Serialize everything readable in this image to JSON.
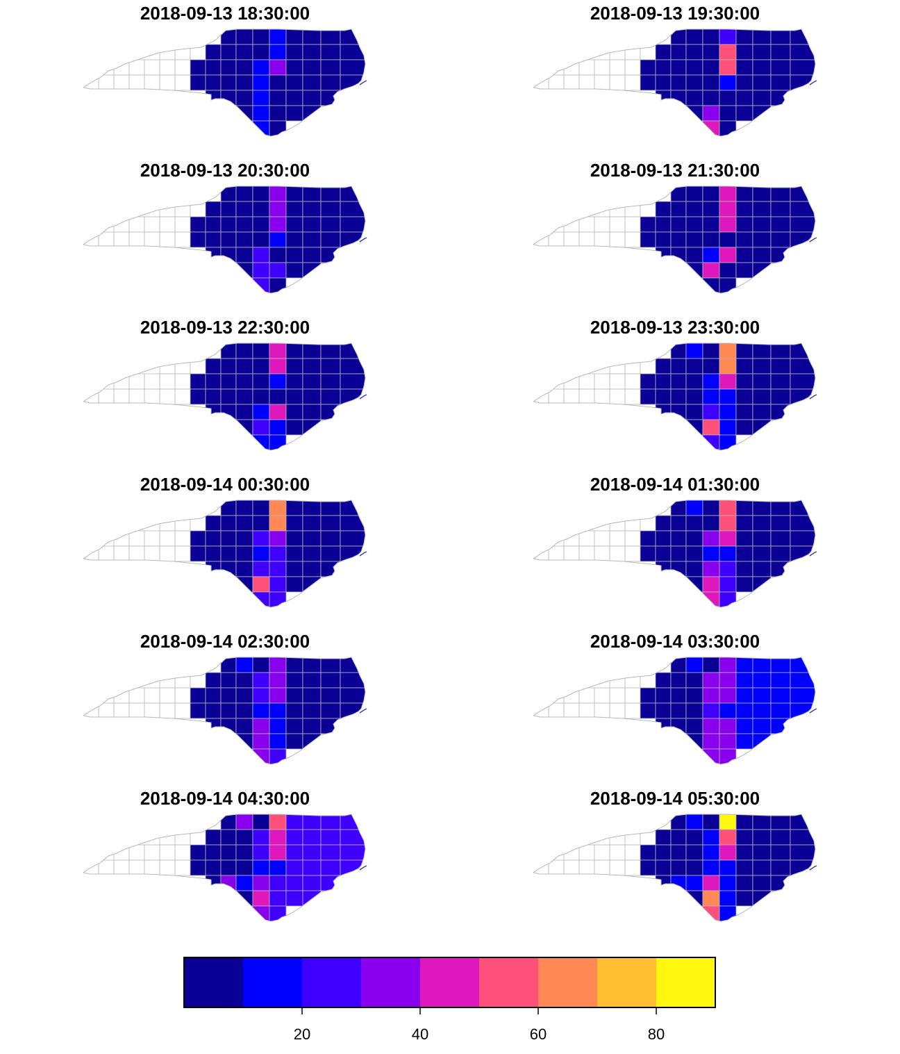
{
  "panels": [
    {
      "title": "2018-09-13 18:30:00",
      "values": [
        0,
        0,
        0,
        0,
        0,
        0,
        0,
        0,
        0,
        0,
        0,
        0,
        0,
        0,
        0,
        5,
        5,
        5,
        5,
        5,
        5,
        5,
        5,
        5,
        5,
        5,
        5,
        5,
        5,
        5,
        5,
        5,
        5,
        5,
        15,
        15,
        15,
        15,
        15,
        15,
        15,
        35,
        5,
        5,
        5,
        5,
        5
      ]
    },
    {
      "title": "2018-09-13 19:30:00",
      "values": [
        0,
        0,
        0,
        0,
        0,
        0,
        0,
        0,
        0,
        0,
        0,
        0,
        0,
        0,
        0,
        5,
        5,
        5,
        5,
        5,
        5,
        5,
        5,
        5,
        5,
        5,
        5,
        5,
        5,
        5,
        5,
        5,
        5,
        5,
        5,
        5,
        5,
        35,
        45,
        25,
        55,
        55,
        15,
        5,
        5,
        5,
        5
      ]
    },
    {
      "title": "2018-09-13 20:30:00",
      "values": [
        0,
        0,
        0,
        0,
        0,
        0,
        0,
        0,
        0,
        0,
        0,
        0,
        0,
        0,
        0,
        5,
        5,
        5,
        5,
        5,
        5,
        5,
        5,
        5,
        5,
        5,
        5,
        5,
        5,
        5,
        5,
        5,
        5,
        5,
        5,
        5,
        25,
        25,
        25,
        35,
        35,
        35,
        15,
        5,
        25,
        5,
        5
      ]
    },
    {
      "title": "2018-09-13 21:30:00",
      "values": [
        0,
        0,
        0,
        0,
        0,
        0,
        0,
        0,
        0,
        0,
        0,
        0,
        0,
        0,
        0,
        5,
        5,
        5,
        5,
        5,
        5,
        5,
        5,
        5,
        5,
        5,
        5,
        5,
        5,
        5,
        5,
        5,
        5,
        5,
        5,
        5,
        15,
        45,
        5,
        45,
        45,
        45,
        5,
        45,
        5,
        5,
        5
      ]
    },
    {
      "title": "2018-09-13 22:30:00",
      "values": [
        0,
        0,
        0,
        0,
        0,
        0,
        0,
        0,
        0,
        0,
        0,
        0,
        0,
        0,
        0,
        5,
        5,
        5,
        5,
        5,
        5,
        5,
        5,
        5,
        5,
        5,
        5,
        5,
        5,
        5,
        5,
        5,
        5,
        5,
        5,
        5,
        15,
        25,
        15,
        45,
        45,
        15,
        5,
        45,
        15,
        15,
        5
      ]
    },
    {
      "title": "2018-09-13 23:30:00",
      "values": [
        0,
        0,
        0,
        0,
        0,
        0,
        0,
        0,
        0,
        0,
        0,
        0,
        0,
        0,
        0,
        5,
        5,
        5,
        5,
        5,
        5,
        5,
        5,
        5,
        5,
        5,
        15,
        5,
        5,
        5,
        5,
        5,
        5,
        5,
        15,
        15,
        25,
        55,
        25,
        65,
        65,
        45,
        15,
        15,
        15,
        15,
        5
      ]
    },
    {
      "title": "2018-09-14 00:30:00",
      "values": [
        0,
        0,
        0,
        0,
        0,
        0,
        0,
        0,
        0,
        0,
        0,
        0,
        0,
        0,
        0,
        5,
        5,
        5,
        5,
        5,
        5,
        5,
        5,
        5,
        5,
        5,
        5,
        5,
        5,
        5,
        5,
        5,
        5,
        5,
        25,
        15,
        25,
        55,
        25,
        65,
        65,
        35,
        25,
        25,
        25,
        25,
        5
      ]
    },
    {
      "title": "2018-09-14 01:30:00",
      "values": [
        0,
        0,
        0,
        0,
        0,
        0,
        0,
        0,
        0,
        0,
        0,
        0,
        0,
        0,
        0,
        5,
        5,
        5,
        5,
        5,
        5,
        5,
        5,
        5,
        5,
        5,
        15,
        5,
        5,
        5,
        5,
        5,
        5,
        5,
        35,
        15,
        35,
        45,
        45,
        55,
        55,
        45,
        15,
        25,
        25,
        25,
        5
      ]
    },
    {
      "title": "2018-09-14 02:30:00",
      "values": [
        0,
        0,
        0,
        0,
        0,
        0,
        0,
        0,
        0,
        0,
        0,
        0,
        0,
        0,
        0,
        5,
        5,
        5,
        5,
        5,
        5,
        5,
        5,
        5,
        5,
        5,
        15,
        5,
        5,
        5,
        5,
        5,
        5,
        25,
        25,
        15,
        35,
        35,
        35,
        35,
        35,
        35,
        15,
        15,
        15,
        25,
        5
      ]
    },
    {
      "title": "2018-09-14 03:30:00",
      "values": [
        0,
        0,
        0,
        0,
        0,
        0,
        0,
        0,
        0,
        0,
        0,
        0,
        0,
        0,
        0,
        5,
        5,
        5,
        5,
        5,
        5,
        5,
        5,
        5,
        5,
        5,
        15,
        5,
        5,
        5,
        5,
        5,
        5,
        35,
        35,
        25,
        35,
        35,
        35,
        35,
        35,
        35,
        15,
        35,
        35,
        35,
        15
      ]
    },
    {
      "title": "2018-09-14 04:30:00",
      "values": [
        0,
        0,
        0,
        0,
        0,
        0,
        0,
        0,
        0,
        0,
        0,
        0,
        0,
        0,
        0,
        5,
        5,
        5,
        5,
        5,
        5,
        5,
        5,
        5,
        5,
        35,
        35,
        5,
        5,
        5,
        15,
        5,
        5,
        25,
        25,
        15,
        35,
        45,
        35,
        55,
        45,
        45,
        15,
        25,
        25,
        25,
        25
      ]
    },
    {
      "title": "2018-09-14 05:30:00",
      "values": [
        0,
        0,
        0,
        0,
        0,
        0,
        0,
        0,
        0,
        0,
        0,
        0,
        0,
        0,
        0,
        5,
        5,
        5,
        5,
        5,
        5,
        5,
        5,
        5,
        5,
        15,
        15,
        5,
        5,
        5,
        15,
        5,
        5,
        15,
        15,
        15,
        45,
        65,
        55,
        85,
        55,
        45,
        15,
        15,
        15,
        15,
        5
      ]
    }
  ],
  "colors": {
    "scale": [
      "#0a0096",
      "#0000ff",
      "#3f00ff",
      "#8800ee",
      "#de18bd",
      "#ff4f7b",
      "#ff8854",
      "#ffbe32",
      "#fff80e"
    ],
    "no_data_fill": "#ffffff",
    "border": "#b8b8b8"
  },
  "legend": {
    "breaks": [
      0,
      10,
      20,
      30,
      40,
      50,
      60,
      70,
      80,
      90
    ],
    "tick_labels": [
      "20",
      "40",
      "60",
      "80"
    ],
    "tick_values": [
      20,
      40,
      60,
      80
    ]
  }
}
